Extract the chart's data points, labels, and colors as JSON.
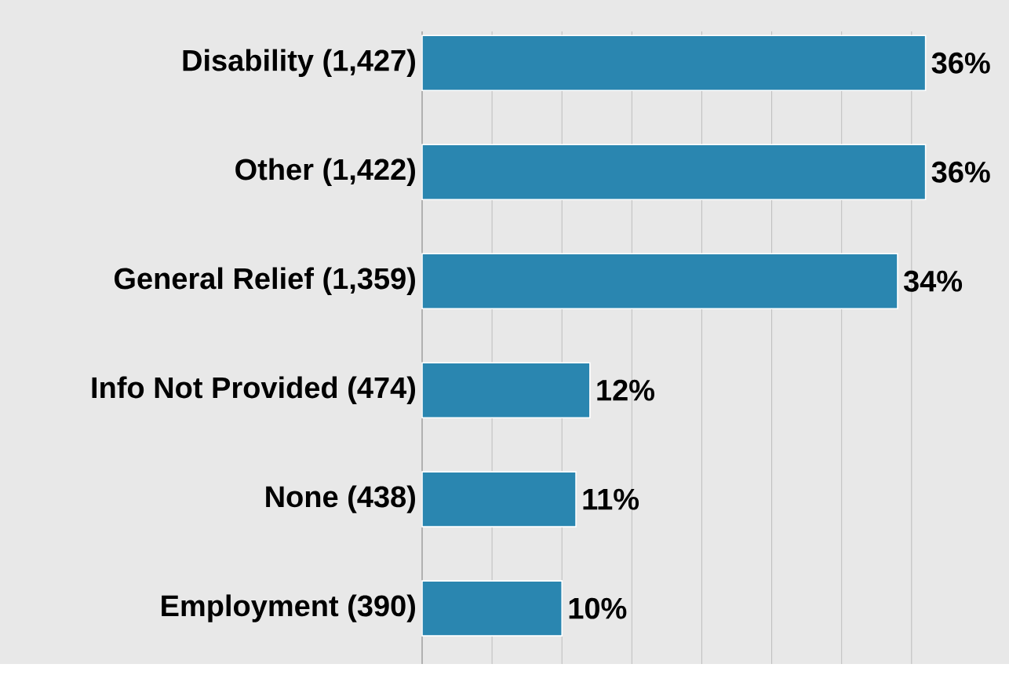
{
  "chart_data": {
    "type": "bar",
    "orientation": "horizontal",
    "categories": [
      "Disability (1,427)",
      "Other (1,422)",
      "General Relief (1,359)",
      "Info Not Provided (474)",
      "None (438)",
      "Employment (390)"
    ],
    "values": [
      36,
      36,
      34,
      12,
      11,
      10
    ],
    "value_labels": [
      "36%",
      "36%",
      "34%",
      "12%",
      "11%",
      "10%"
    ],
    "color": "#2a86b0",
    "tick_labels": "y",
    "grid": "x"
  }
}
